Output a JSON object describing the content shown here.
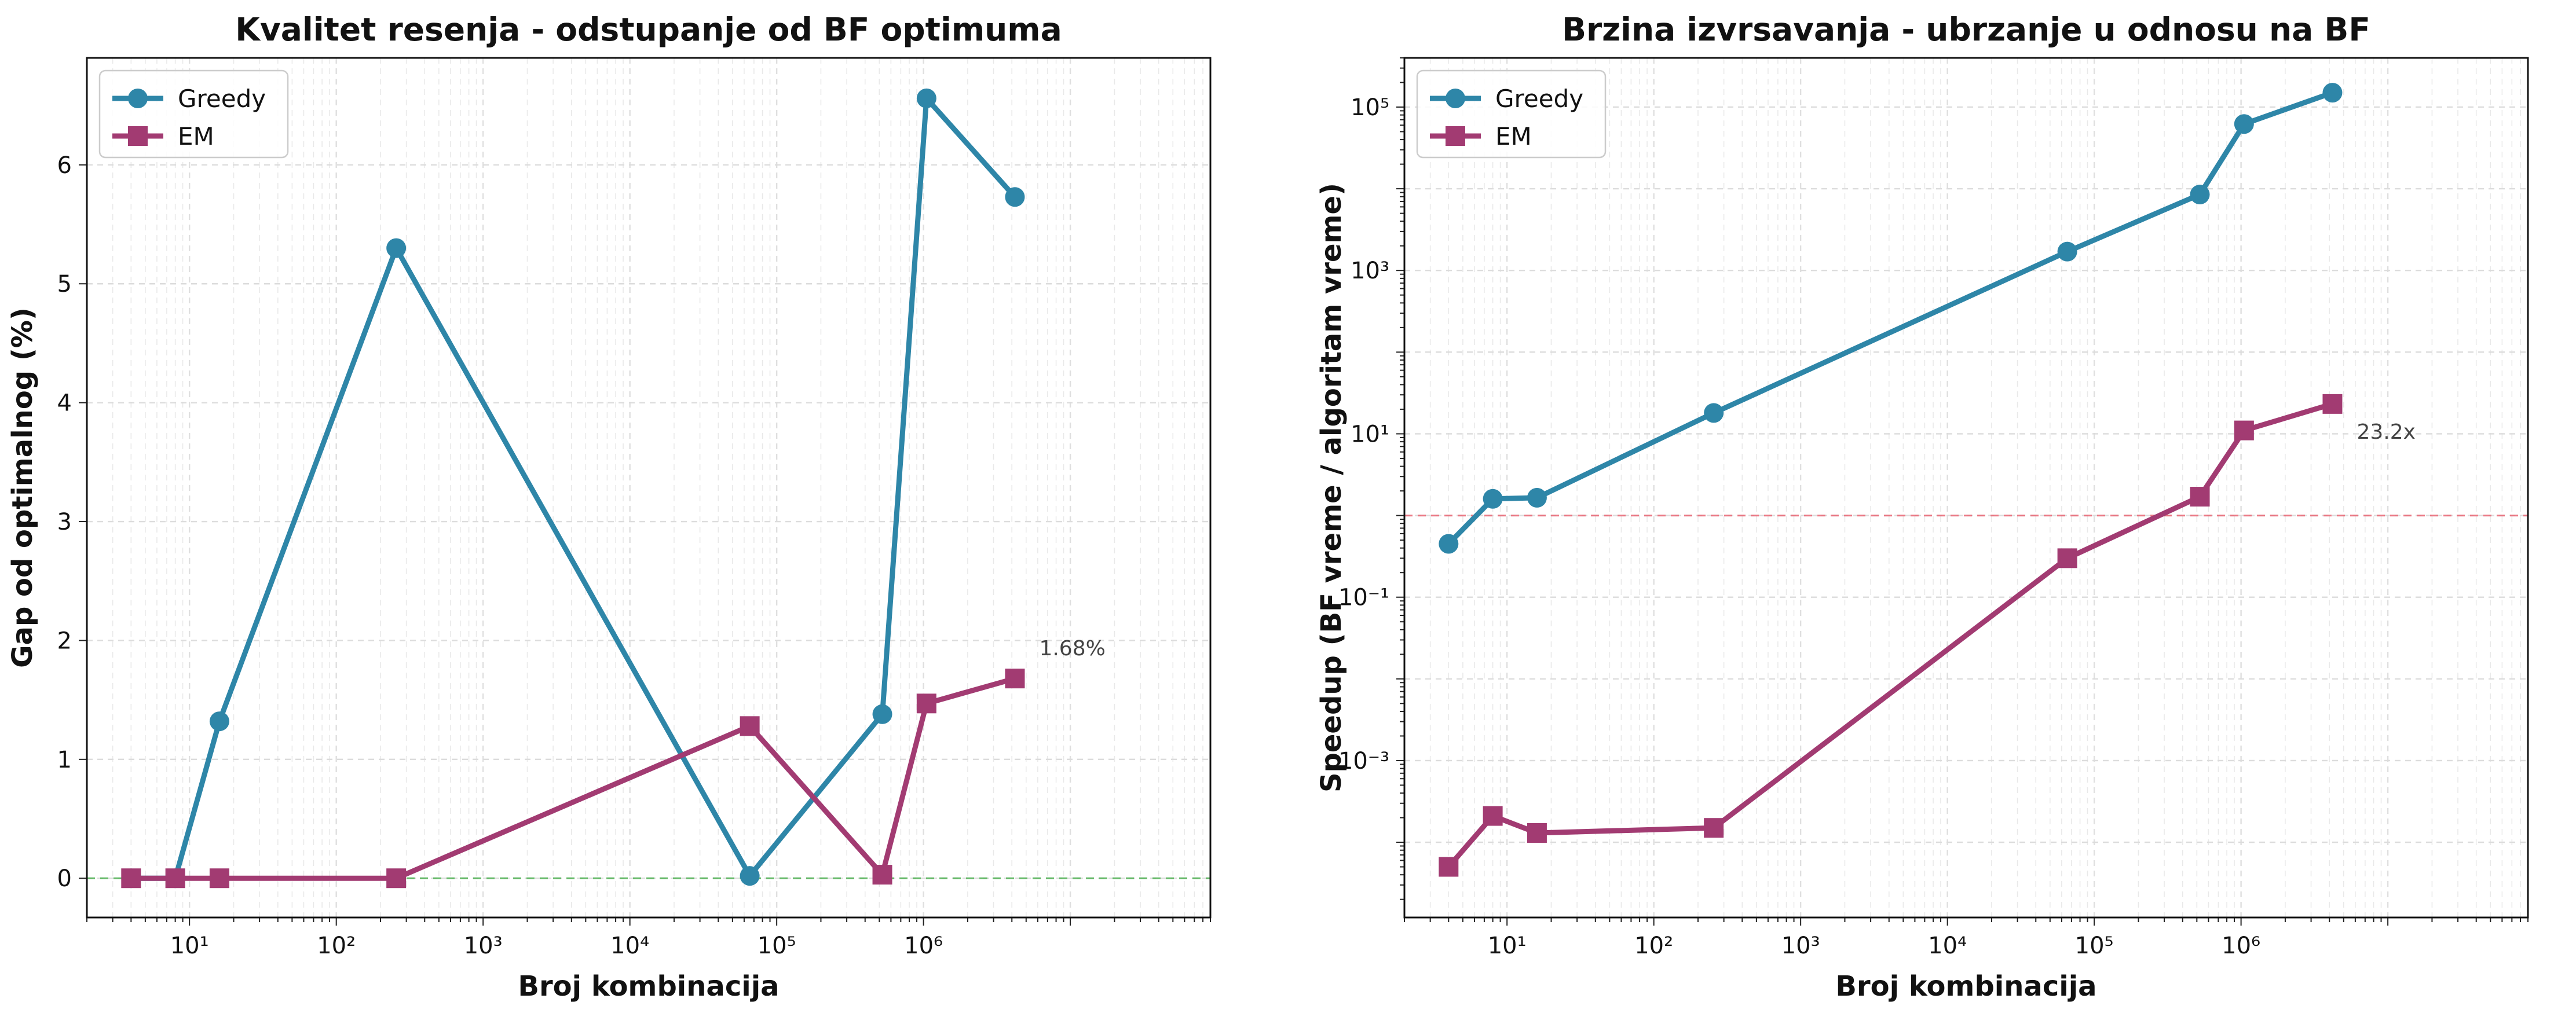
{
  "chart_data": [
    {
      "type": "line",
      "title": "Kvalitet resenja - odstupanje od BF optimuma",
      "xlabel": "Broj kombinacija",
      "ylabel": "Gap od optimalnog (%)",
      "xscale": "log",
      "yscale": "linear",
      "xlim": [
        2,
        90000000
      ],
      "ylim": [
        -0.33,
        6.9
      ],
      "xticks": [
        10,
        100,
        1000,
        10000,
        100000,
        1000000
      ],
      "yticks": [
        0,
        1,
        2,
        3,
        4,
        5,
        6
      ],
      "grid": true,
      "legend_position": "upper-left",
      "x": [
        4,
        8,
        16,
        256,
        65536,
        524288,
        1048576,
        4194304
      ],
      "series": [
        {
          "name": "Greedy",
          "marker": "circle",
          "color": "#2E86A8",
          "values": [
            0,
            0,
            1.32,
            5.3,
            0.02,
            1.38,
            6.56,
            5.73
          ]
        },
        {
          "name": "EM",
          "marker": "square",
          "color": "#A23B72",
          "values": [
            0,
            0,
            0,
            0,
            1.28,
            0.03,
            1.47,
            1.68
          ]
        }
      ],
      "reference_line": {
        "y": 0,
        "color": "#4CAF50",
        "style": "dashed"
      },
      "annotations": [
        {
          "text": "1.68%",
          "x": 4194304,
          "y": 1.68
        }
      ]
    },
    {
      "type": "line",
      "title": "Brzina izvrsavanja - ubrzanje u odnosu na BF",
      "xlabel": "Broj kombinacija",
      "ylabel": "Speedup (BF vreme / algoritam vreme)",
      "xscale": "log",
      "yscale": "log",
      "xlim": [
        2,
        90000000
      ],
      "ylim": [
        1.2e-05,
        400000
      ],
      "xticks": [
        10,
        100,
        1000,
        10000,
        100000,
        1000000
      ],
      "yticks": [
        0.001,
        0.1,
        10,
        1000,
        100000
      ],
      "grid": true,
      "legend_position": "upper-left",
      "x": [
        4,
        8,
        16,
        256,
        65536,
        524288,
        1048576,
        4194304
      ],
      "series": [
        {
          "name": "Greedy",
          "marker": "circle",
          "color": "#2E86A8",
          "values": [
            0.45,
            1.6,
            1.65,
            18,
            1700,
            8500,
            62000,
            150000
          ]
        },
        {
          "name": "EM",
          "marker": "square",
          "color": "#A23B72",
          "values": [
            5e-05,
            0.00021,
            0.00013,
            0.00015,
            0.3,
            1.7,
            11,
            23.2
          ]
        }
      ],
      "reference_line": {
        "y": 1,
        "color": "#E8616F",
        "style": "dashed"
      },
      "annotations": [
        {
          "text": "23.2x",
          "x": 4194304,
          "y": 23.2
        }
      ]
    }
  ]
}
